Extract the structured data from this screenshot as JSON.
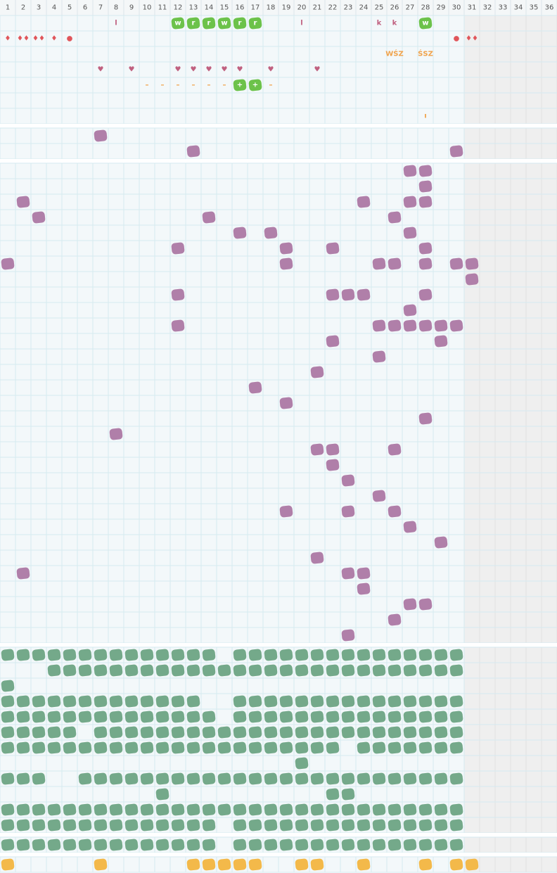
{
  "header": {
    "columns": [
      "1",
      "2",
      "3",
      "4",
      "5",
      "6",
      "7",
      "8",
      "9",
      "10",
      "11",
      "12",
      "13",
      "14",
      "15",
      "16",
      "17",
      "18",
      "19",
      "20",
      "21",
      "22",
      "23",
      "24",
      "25",
      "26",
      "27",
      "28",
      "29",
      "30",
      "31",
      "32",
      "33",
      "34",
      "35",
      "36"
    ]
  },
  "sections": [
    {
      "color": "#b07fa9",
      "rows": [
        [
          {
            "col": 8,
            "text": "l",
            "kind": "pink"
          },
          {
            "col": 12,
            "text": "w",
            "kind": "badge"
          },
          {
            "col": 13,
            "text": "r",
            "kind": "badge"
          },
          {
            "col": 14,
            "text": "r",
            "kind": "badge"
          },
          {
            "col": 15,
            "text": "w",
            "kind": "badge"
          },
          {
            "col": 16,
            "text": "r",
            "kind": "badge"
          },
          {
            "col": 17,
            "text": "r",
            "kind": "badge"
          },
          {
            "col": 20,
            "text": "l",
            "kind": "pink"
          },
          {
            "col": 25,
            "text": "k",
            "kind": "pink"
          },
          {
            "col": 26,
            "text": "k",
            "kind": "pink"
          },
          {
            "col": 28,
            "text": "w",
            "kind": "badge"
          }
        ],
        [
          {
            "col": 1,
            "text": "♦",
            "kind": "red"
          },
          {
            "col": 2,
            "text": "♦♦",
            "kind": "red"
          },
          {
            "col": 3,
            "text": "♦♦",
            "kind": "red"
          },
          {
            "col": 4,
            "text": "♦",
            "kind": "red"
          },
          {
            "col": 5,
            "text": "●",
            "kind": "red"
          },
          {
            "col": 30,
            "text": "●",
            "kind": "red"
          },
          {
            "col": 31,
            "text": "♦♦",
            "kind": "red"
          }
        ],
        [
          {
            "col": 26,
            "text": "WŚZ",
            "kind": "orange"
          },
          {
            "col": 28,
            "text": "ŚSZ",
            "kind": "orange"
          }
        ],
        [
          {
            "col": 7,
            "text": "♥",
            "kind": "pink"
          },
          {
            "col": 9,
            "text": "♥",
            "kind": "pink"
          },
          {
            "col": 12,
            "text": "♥",
            "kind": "pink"
          },
          {
            "col": 13,
            "text": "♥",
            "kind": "pink"
          },
          {
            "col": 14,
            "text": "♥",
            "kind": "pink"
          },
          {
            "col": 15,
            "text": "♥",
            "kind": "pink"
          },
          {
            "col": 16,
            "text": "♥",
            "kind": "pink"
          },
          {
            "col": 18,
            "text": "♥",
            "kind": "pink"
          },
          {
            "col": 21,
            "text": "♥",
            "kind": "pink"
          }
        ],
        [
          {
            "col": 10,
            "text": "–",
            "kind": "orange"
          },
          {
            "col": 11,
            "text": "–",
            "kind": "orange"
          },
          {
            "col": 12,
            "text": "–",
            "kind": "orange"
          },
          {
            "col": 13,
            "text": "–",
            "kind": "orange"
          },
          {
            "col": 14,
            "text": "–",
            "kind": "orange"
          },
          {
            "col": 15,
            "text": "–",
            "kind": "orange"
          },
          {
            "col": 16,
            "text": "+",
            "kind": "badge"
          },
          {
            "col": 17,
            "text": "+",
            "kind": "badge"
          },
          {
            "col": 18,
            "text": "–",
            "kind": "orange"
          }
        ],
        [],
        [
          {
            "col": 28,
            "text": "ı",
            "kind": "orange"
          }
        ]
      ]
    },
    {
      "color": "#b07fa9",
      "rows": [
        [
          7
        ],
        [
          13,
          30
        ]
      ]
    },
    {
      "color": "#b07fa9",
      "rows": [
        [
          27,
          28
        ],
        [
          28
        ],
        [
          2,
          24,
          27,
          28
        ],
        [
          3,
          14,
          26
        ],
        [
          16,
          18,
          27
        ],
        [
          12,
          19,
          22,
          28
        ],
        [
          1,
          19,
          25,
          26,
          28,
          30,
          31
        ],
        [
          31
        ],
        [
          12,
          22,
          23,
          24,
          28
        ],
        [
          27
        ],
        [
          12,
          25,
          26,
          27,
          28,
          29,
          30
        ],
        [
          22,
          29
        ],
        [
          25
        ],
        [
          21
        ],
        [
          17
        ],
        [
          19
        ],
        [
          28
        ],
        [
          8
        ],
        [
          21,
          22,
          26
        ],
        [
          22
        ],
        [
          23
        ],
        [
          25
        ],
        [
          19,
          23,
          26
        ],
        [
          27
        ],
        [
          29
        ],
        [
          21
        ],
        [
          2,
          23,
          24
        ],
        [
          24
        ],
        [
          27,
          28
        ],
        [
          26
        ],
        [
          23
        ]
      ]
    },
    {
      "color": "#74a98a",
      "rows": [
        [
          1,
          2,
          3,
          4,
          5,
          6,
          7,
          8,
          9,
          10,
          11,
          12,
          13,
          14,
          16,
          17,
          18,
          19,
          20,
          21,
          22,
          23,
          24,
          25,
          26,
          27,
          28,
          29,
          30
        ],
        [
          4,
          5,
          6,
          7,
          8,
          9,
          10,
          11,
          12,
          13,
          14,
          15,
          16,
          17,
          18,
          19,
          20,
          21,
          22,
          23,
          24,
          25,
          26,
          27,
          28,
          29,
          30
        ],
        [
          1
        ],
        [
          1,
          2,
          3,
          4,
          5,
          6,
          7,
          8,
          9,
          10,
          11,
          12,
          13,
          16,
          17,
          18,
          19,
          20,
          21,
          22,
          23,
          24,
          25,
          26,
          27,
          28,
          29,
          30
        ],
        [
          1,
          2,
          3,
          4,
          5,
          6,
          7,
          8,
          9,
          10,
          11,
          12,
          13,
          14,
          16,
          17,
          18,
          19,
          20,
          21,
          22,
          23,
          24,
          25,
          26,
          27,
          28,
          29,
          30
        ],
        [
          1,
          2,
          3,
          4,
          5,
          7,
          8,
          9,
          10,
          11,
          12,
          13,
          14,
          15,
          16,
          17,
          18,
          19,
          20,
          21,
          22,
          23,
          24,
          25,
          26,
          27,
          28,
          29,
          30
        ],
        [
          1,
          2,
          3,
          4,
          5,
          6,
          7,
          8,
          9,
          10,
          11,
          12,
          13,
          14,
          15,
          16,
          17,
          18,
          19,
          20,
          21,
          22,
          24,
          25,
          26,
          27,
          28,
          29,
          30
        ],
        [
          20
        ],
        [
          1,
          2,
          3,
          6,
          7,
          8,
          9,
          10,
          11,
          12,
          13,
          14,
          15,
          16,
          17,
          18,
          19,
          20,
          21,
          22,
          23,
          24,
          25,
          26,
          27,
          28,
          29,
          30
        ],
        [
          11,
          22,
          23
        ],
        [
          1,
          2,
          3,
          4,
          5,
          6,
          7,
          8,
          9,
          10,
          11,
          12,
          13,
          14,
          15,
          16,
          17,
          18,
          19,
          20,
          21,
          22,
          23,
          24,
          25,
          26,
          27,
          28,
          29,
          30
        ],
        [
          1,
          2,
          3,
          4,
          5,
          6,
          7,
          8,
          9,
          10,
          11,
          12,
          13,
          14,
          16,
          17,
          18,
          19,
          20,
          21,
          22,
          23,
          24,
          25,
          26,
          27,
          28,
          29,
          30
        ]
      ]
    },
    {
      "color": "#74a98a",
      "rows": [
        [
          1,
          2,
          3,
          4,
          5,
          6,
          7,
          8,
          9,
          10,
          11,
          12,
          13,
          14,
          16,
          17,
          18,
          19,
          20,
          21,
          22,
          23,
          24,
          25,
          26,
          27,
          28,
          29,
          30
        ]
      ]
    },
    {
      "color": "#f3b94a",
      "rows": [
        [
          1,
          7,
          13,
          14,
          15,
          16,
          17,
          20,
          21,
          24,
          28,
          30,
          31
        ]
      ]
    }
  ]
}
